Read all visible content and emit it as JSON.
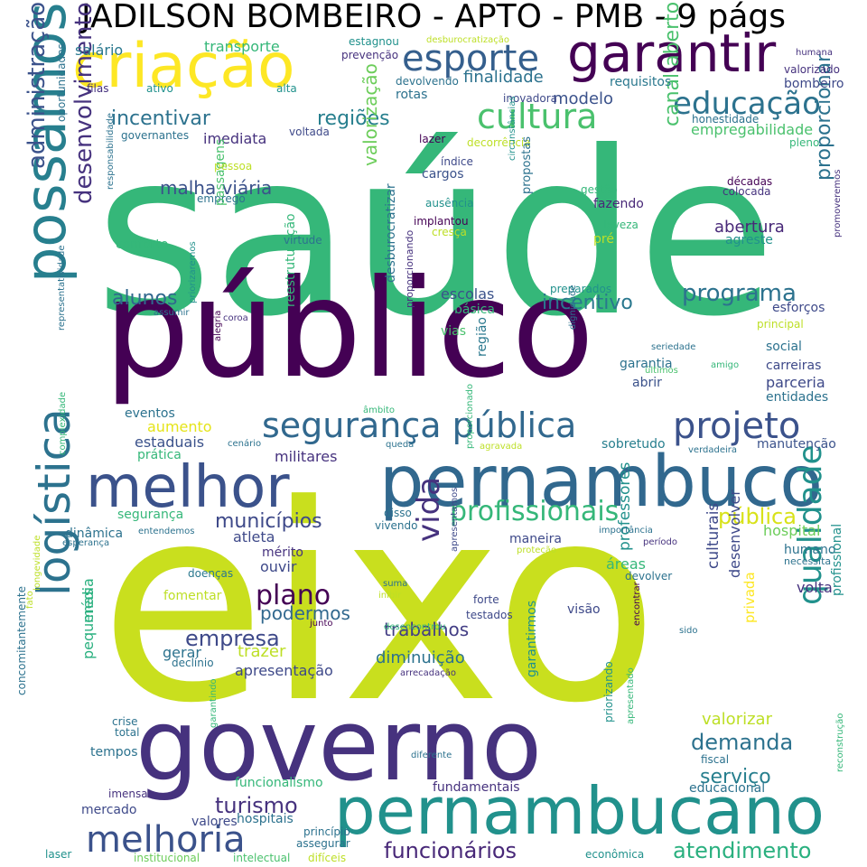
{
  "title": "JADILSON BOMBEIRO - APTO - PMB - 9 págs",
  "palette": {
    "v1": "#440154",
    "v2": "#46327e",
    "v3": "#365c8d",
    "v4": "#277f8e",
    "v5": "#1fa187",
    "v6": "#4ac16d",
    "v7": "#a0da39",
    "v8": "#fde725",
    "lime": "#c9df1e"
  },
  "words": [
    {
      "text": "saúde",
      "color": "#35b779"
    },
    {
      "text": "eixo",
      "color": "#c9df1e"
    },
    {
      "text": "público",
      "color": "#440154"
    },
    {
      "text": "governo",
      "color": "#46327e"
    },
    {
      "text": "pernambuco",
      "color": "#31688e"
    },
    {
      "text": "pernambucano",
      "color": "#21918c"
    },
    {
      "text": "possamos",
      "color": "#277f8e"
    },
    {
      "text": "melhor",
      "color": "#3b528b"
    },
    {
      "text": "criação",
      "color": "#fde725"
    },
    {
      "text": "garantir",
      "color": "#440154"
    },
    {
      "text": "logística",
      "color": "#2c728e"
    },
    {
      "text": "segurança pública",
      "color": "#31688e"
    },
    {
      "text": "projeto",
      "color": "#3b528b"
    },
    {
      "text": "melhoria",
      "color": "#3b528b"
    },
    {
      "text": "esporte",
      "color": "#355f8d"
    },
    {
      "text": "cultura",
      "color": "#4ac16d"
    },
    {
      "text": "educação",
      "color": "#2c728e"
    },
    {
      "text": "qualidade",
      "color": "#21918c"
    },
    {
      "text": "profissionais",
      "color": "#35b779"
    },
    {
      "text": "desenvolvimento",
      "color": "#46327e"
    },
    {
      "text": "administração",
      "color": "#3b528b"
    },
    {
      "text": "funcionários",
      "color": "#482878"
    },
    {
      "text": "atendimento",
      "color": "#2ab07f"
    },
    {
      "text": "programa",
      "color": "#2c728e"
    },
    {
      "text": "plano",
      "color": "#440154"
    },
    {
      "text": "empresa",
      "color": "#3e4989"
    },
    {
      "text": "vida",
      "color": "#46327e"
    },
    {
      "text": "municípios",
      "color": "#3e4989"
    },
    {
      "text": "turismo",
      "color": "#46327e"
    },
    {
      "text": "demanda",
      "color": "#2c728e"
    },
    {
      "text": "serviço",
      "color": "#277f8e"
    },
    {
      "text": "pública",
      "color": "#d8e219"
    },
    {
      "text": "incentivar",
      "color": "#2c728e"
    },
    {
      "text": "regiões",
      "color": "#277f8e"
    },
    {
      "text": "incentivo",
      "color": "#2a788e"
    },
    {
      "text": "alunos",
      "color": "#31688e"
    },
    {
      "text": "malha viária",
      "color": "#3b528b"
    },
    {
      "text": "trabalhos",
      "color": "#433e85"
    },
    {
      "text": "podermos",
      "color": "#31688e"
    },
    {
      "text": "canal aberto",
      "color": "#4ac16d"
    },
    {
      "text": "proporcionar",
      "color": "#2c728e"
    },
    {
      "text": "valorização",
      "color": "#6ccd5a"
    },
    {
      "text": "valorizar",
      "color": "#bddf26"
    },
    {
      "text": "finalidade",
      "color": "#2c728e"
    },
    {
      "text": "modelo",
      "color": "#3b528b"
    },
    {
      "text": "abertura",
      "color": "#482878"
    },
    {
      "text": "estaduais",
      "color": "#3b528b"
    },
    {
      "text": "militares",
      "color": "#46327e"
    },
    {
      "text": "atleta",
      "color": "#3e4989"
    },
    {
      "text": "ouvir",
      "color": "#3e4989"
    },
    {
      "text": "diminuição",
      "color": "#2c728e"
    },
    {
      "text": "apresentação",
      "color": "#3e4989"
    },
    {
      "text": "trazer",
      "color": "#bddf26"
    },
    {
      "text": "gerar",
      "color": "#2c728e"
    },
    {
      "text": "professores",
      "color": "#21918c"
    },
    {
      "text": "culturais",
      "color": "#3e4989"
    },
    {
      "text": "desenvolver",
      "color": "#3e4989"
    },
    {
      "text": "privada",
      "color": "#fde725"
    },
    {
      "text": "empregabilidade",
      "color": "#4ac16d"
    },
    {
      "text": "imediata",
      "color": "#46327e"
    },
    {
      "text": "transporte",
      "color": "#35b779"
    },
    {
      "text": "salário",
      "color": "#2a788e"
    },
    {
      "text": "aumento",
      "color": "#e5e419"
    },
    {
      "text": "escolas",
      "color": "#3b528b"
    },
    {
      "text": "parceria",
      "color": "#3e4989"
    },
    {
      "text": "carreiras",
      "color": "#3e4989"
    },
    {
      "text": "entidades",
      "color": "#2c728e"
    },
    {
      "text": "manutenção",
      "color": "#3b528b"
    },
    {
      "text": "sobretudo",
      "color": "#277f8e"
    },
    {
      "text": "hospital",
      "color": "#6ccd5a"
    },
    {
      "text": "humano",
      "color": "#2c728e"
    },
    {
      "text": "volta",
      "color": "#46327e"
    },
    {
      "text": "profissional",
      "color": "#21918c"
    },
    {
      "text": "fundamentais",
      "color": "#46327e"
    },
    {
      "text": "funcionalismo",
      "color": "#35b779"
    },
    {
      "text": "educacional",
      "color": "#2c728e"
    },
    {
      "text": "hospitais",
      "color": "#2c728e"
    },
    {
      "text": "valores",
      "color": "#3e4989"
    },
    {
      "text": "mercado",
      "color": "#3e4989"
    },
    {
      "text": "tempos",
      "color": "#2c728e"
    },
    {
      "text": "pequenas",
      "color": "#2ab07f"
    },
    {
      "text": "média",
      "color": "#2ab07f"
    },
    {
      "text": "segurança",
      "color": "#35b779"
    },
    {
      "text": "dinâmica",
      "color": "#2c728e"
    },
    {
      "text": "mérito",
      "color": "#46327e"
    },
    {
      "text": "áreas",
      "color": "#35b779"
    },
    {
      "text": "devolver",
      "color": "#2c728e"
    },
    {
      "text": "maneira",
      "color": "#3e4989"
    },
    {
      "text": "visão",
      "color": "#3e4989"
    },
    {
      "text": "forte",
      "color": "#3e4989"
    },
    {
      "text": "testados",
      "color": "#3e4989"
    },
    {
      "text": "conforto",
      "color": "#35b779"
    },
    {
      "text": "eventos",
      "color": "#2c728e"
    },
    {
      "text": "prática",
      "color": "#35b779"
    },
    {
      "text": "fomentar",
      "color": "#bddf26"
    },
    {
      "text": "doenças",
      "color": "#2a788e"
    },
    {
      "text": "declínio",
      "color": "#2c728e"
    },
    {
      "text": "garantia",
      "color": "#2c728e"
    },
    {
      "text": "abrir",
      "color": "#3b528b"
    },
    {
      "text": "social",
      "color": "#2c728e"
    },
    {
      "text": "esforços",
      "color": "#3e4989"
    },
    {
      "text": "vias",
      "color": "#4ac16d"
    },
    {
      "text": "básica",
      "color": "#35b779"
    },
    {
      "text": "região",
      "color": "#2a788e"
    },
    {
      "text": "cargos",
      "color": "#3b528b"
    },
    {
      "text": "índice",
      "color": "#3e4989"
    },
    {
      "text": "lazer",
      "color": "#440154"
    },
    {
      "text": "fazendo",
      "color": "#482878"
    },
    {
      "text": "rotas",
      "color": "#2c728e"
    },
    {
      "text": "agreste",
      "color": "#21918c"
    },
    {
      "text": "pré",
      "color": "#bddf26"
    },
    {
      "text": "requisitos",
      "color": "#2a788e"
    },
    {
      "text": "bombeiro",
      "color": "#3e4989"
    },
    {
      "text": "oportunidades",
      "color": "#2c728e"
    },
    {
      "text": "emprego",
      "color": "#2c728e"
    },
    {
      "text": "passagens",
      "color": "#4ac16d"
    },
    {
      "text": "reestruturação",
      "color": "#35b779"
    },
    {
      "text": "crise",
      "color": "#2c728e"
    },
    {
      "text": "total",
      "color": "#2c728e"
    },
    {
      "text": "concomitantemente",
      "color": "#2c728e"
    },
    {
      "text": "garantirmos",
      "color": "#21918c"
    },
    {
      "text": "priorizando",
      "color": "#21918c"
    },
    {
      "text": "fiscal",
      "color": "#2c728e"
    },
    {
      "text": "imensa",
      "color": "#46327e"
    },
    {
      "text": "princípio",
      "color": "#2c728e"
    },
    {
      "text": "assegurar",
      "color": "#2c728e"
    },
    {
      "text": "institucional",
      "color": "#6ccd5a"
    },
    {
      "text": "intelectual",
      "color": "#4ac16d"
    },
    {
      "text": "difíceis",
      "color": "#bddf26"
    },
    {
      "text": "econômica",
      "color": "#21918c"
    },
    {
      "text": "laser",
      "color": "#21918c"
    },
    {
      "text": "valorizado",
      "color": "#46327e"
    },
    {
      "text": "humana",
      "color": "#46327e"
    },
    {
      "text": "filas",
      "color": "#46327e"
    },
    {
      "text": "ativo",
      "color": "#21918c"
    },
    {
      "text": "alta",
      "color": "#21918c"
    },
    {
      "text": "prevenção",
      "color": "#46327e"
    },
    {
      "text": "estagnou",
      "color": "#21918c"
    },
    {
      "text": "desburocratização",
      "color": "#bddf26"
    },
    {
      "text": "devolvendo",
      "color": "#2c728e"
    },
    {
      "text": "inovadora",
      "color": "#3e4989"
    },
    {
      "text": "honestidade",
      "color": "#2c728e"
    },
    {
      "text": "pleno",
      "color": "#35b779"
    },
    {
      "text": "governantes",
      "color": "#2c728e"
    },
    {
      "text": "voltada",
      "color": "#3e4989"
    },
    {
      "text": "decorrência",
      "color": "#bddf26"
    },
    {
      "text": "pessoa",
      "color": "#bddf26"
    },
    {
      "text": "gestão",
      "color": "#35b779"
    },
    {
      "text": "leveza",
      "color": "#35b779"
    },
    {
      "text": "décadas",
      "color": "#440154"
    },
    {
      "text": "colocada",
      "color": "#46327e"
    },
    {
      "text": "ausência",
      "color": "#21918c"
    },
    {
      "text": "implantou",
      "color": "#440154"
    },
    {
      "text": "cresça",
      "color": "#bddf26"
    },
    {
      "text": "virtude",
      "color": "#2c728e"
    },
    {
      "text": "circunstâncias",
      "color": "#21918c"
    },
    {
      "text": "propostas",
      "color": "#2c728e"
    },
    {
      "text": "desburocratizar",
      "color": "#2c728e"
    },
    {
      "text": "preparados",
      "color": "#21918c"
    },
    {
      "text": "promoveremos",
      "color": "#46327e"
    },
    {
      "text": "principal",
      "color": "#bddf26"
    },
    {
      "text": "dignidade",
      "color": "#2c728e"
    },
    {
      "text": "seriedade",
      "color": "#2c728e"
    },
    {
      "text": "amigo",
      "color": "#35b779"
    },
    {
      "text": "últimos",
      "color": "#4ac16d"
    },
    {
      "text": "proporcionando",
      "color": "#46327e"
    },
    {
      "text": "responsabilidade",
      "color": "#2c728e"
    },
    {
      "text": "assumir",
      "color": "#2c728e"
    },
    {
      "text": "coroa",
      "color": "#46327e"
    },
    {
      "text": "alegria",
      "color": "#440154"
    },
    {
      "text": "priorizaremos",
      "color": "#21918c"
    },
    {
      "text": "representatividade",
      "color": "#2c728e"
    },
    {
      "text": "âmbito",
      "color": "#35b779"
    },
    {
      "text": "cenário",
      "color": "#2c728e"
    },
    {
      "text": "queda",
      "color": "#2c728e"
    },
    {
      "text": "agravada",
      "color": "#bddf26"
    },
    {
      "text": "verdadeira",
      "color": "#2c728e"
    },
    {
      "text": "complexidade",
      "color": "#35b779"
    },
    {
      "text": "proporcionado",
      "color": "#35b779"
    },
    {
      "text": "disso",
      "color": "#2c728e"
    },
    {
      "text": "vivendo",
      "color": "#2c728e"
    },
    {
      "text": "entendemos",
      "color": "#2c728e"
    },
    {
      "text": "esperança",
      "color": "#2c728e"
    },
    {
      "text": "importância",
      "color": "#2c728e"
    },
    {
      "text": "período",
      "color": "#46327e"
    },
    {
      "text": "proteção",
      "color": "#bddf26"
    },
    {
      "text": "necessita",
      "color": "#2c728e"
    },
    {
      "text": "apresentamos",
      "color": "#3e4989"
    },
    {
      "text": "suma",
      "color": "#2c728e"
    },
    {
      "text": "inibir",
      "color": "#bddf26"
    },
    {
      "text": "desencontrou",
      "color": "#35b779"
    },
    {
      "text": "fato",
      "color": "#bddf26"
    },
    {
      "text": "longevidade",
      "color": "#bddf26"
    },
    {
      "text": "junto",
      "color": "#440154"
    },
    {
      "text": "arrecadação",
      "color": "#46327e"
    },
    {
      "text": "sido",
      "color": "#2c728e"
    },
    {
      "text": "encontrar",
      "color": "#440154"
    },
    {
      "text": "diferente",
      "color": "#2c728e"
    },
    {
      "text": "apresentado",
      "color": "#35b779"
    },
    {
      "text": "garantindo",
      "color": "#35b779"
    },
    {
      "text": "reconstrução",
      "color": "#35b779"
    }
  ]
}
